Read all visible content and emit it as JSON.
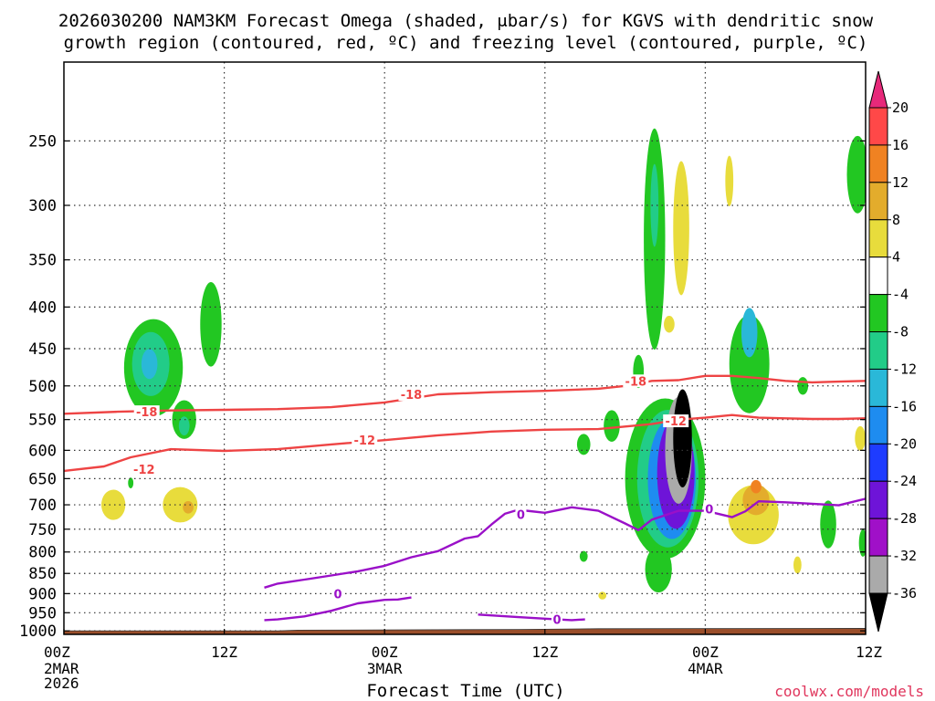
{
  "title_line1": "2026030200 NAM3KM Forecast Omega (shaded, μbar/s) for KGVS with dendritic snow",
  "title_line2": "growth region (contoured, red, ºC) and freezing level (contoured, purple, ºC)",
  "xlabel": "Forecast Time (UTC)",
  "credit": "coolwx.com/models",
  "colors": {
    "ground": "#9a4e2a",
    "dgz": "#ee4444",
    "freezing": "#9a10c8"
  },
  "chart_data": {
    "type": "heatmap",
    "x_ticks": [
      {
        "label": "00Z",
        "sub": [
          "2MAR",
          "2026"
        ],
        "hour": 0
      },
      {
        "label": "12Z",
        "sub": [],
        "hour": 12
      },
      {
        "label": "00Z",
        "sub": [
          "3MAR"
        ],
        "hour": 24
      },
      {
        "label": "12Z",
        "sub": [],
        "hour": 36
      },
      {
        "label": "00Z",
        "sub": [
          "4MAR"
        ],
        "hour": 48
      },
      {
        "label": "12Z",
        "sub": [],
        "hour": 60
      }
    ],
    "xlim": [
      0,
      60
    ],
    "y_ticks": [
      250,
      300,
      350,
      400,
      450,
      500,
      550,
      600,
      650,
      700,
      750,
      800,
      850,
      900,
      950,
      1000
    ],
    "ylim": [
      200,
      1010
    ],
    "colorbar": {
      "labels": [
        "20",
        "16",
        "12",
        "8",
        "4",
        "-4",
        "-8",
        "-12",
        "-16",
        "-20",
        "-24",
        "-28",
        "-32",
        "-36"
      ],
      "colors": [
        "#e7297a",
        "#ff4848",
        "#f08222",
        "#e3ac2c",
        "#e8dc3c",
        "#ffffff",
        "#22c722",
        "#22cc88",
        "#2ab8d8",
        "#1e8cf0",
        "#1e3cff",
        "#6e14d8",
        "#a010c8",
        "#aaaaaa",
        "#000000"
      ]
    },
    "contours": {
      "dgz_minus18": [
        [
          0,
          541
        ],
        [
          4,
          538
        ],
        [
          8,
          536
        ],
        [
          12,
          535
        ],
        [
          16,
          534
        ],
        [
          20,
          531
        ],
        [
          24,
          524
        ],
        [
          28,
          512
        ],
        [
          32,
          509
        ],
        [
          36,
          507
        ],
        [
          40,
          504
        ],
        [
          42,
          500
        ],
        [
          44,
          493
        ],
        [
          46,
          492
        ],
        [
          48,
          486
        ],
        [
          50,
          486
        ],
        [
          52,
          489
        ],
        [
          54,
          493
        ],
        [
          56,
          495
        ],
        [
          58,
          494
        ],
        [
          60,
          493
        ]
      ],
      "dgz_minus12": [
        [
          0,
          636
        ],
        [
          3,
          628
        ],
        [
          5,
          612
        ],
        [
          8,
          598
        ],
        [
          12,
          601
        ],
        [
          16,
          598
        ],
        [
          20,
          590
        ],
        [
          24,
          583
        ],
        [
          28,
          575
        ],
        [
          30,
          572
        ],
        [
          32,
          569
        ],
        [
          36,
          566
        ],
        [
          40,
          565
        ],
        [
          42,
          561
        ],
        [
          44,
          557
        ],
        [
          46,
          550
        ],
        [
          48,
          547
        ],
        [
          50,
          543
        ],
        [
          52,
          547
        ],
        [
          54,
          548
        ],
        [
          56,
          549
        ],
        [
          58,
          549
        ],
        [
          60,
          548
        ]
      ],
      "freezing_main": [
        [
          15,
          885
        ],
        [
          16,
          875
        ],
        [
          18,
          865
        ],
        [
          20,
          855
        ],
        [
          22,
          845
        ],
        [
          24,
          832
        ],
        [
          26,
          812
        ],
        [
          28,
          798
        ],
        [
          30,
          770
        ],
        [
          31,
          765
        ],
        [
          32,
          740
        ],
        [
          33,
          718
        ],
        [
          34,
          710
        ],
        [
          36,
          716
        ],
        [
          38,
          705
        ],
        [
          40,
          712
        ],
        [
          42,
          738
        ],
        [
          43,
          752
        ],
        [
          44,
          730
        ],
        [
          46,
          712
        ],
        [
          48,
          712
        ],
        [
          50,
          725
        ],
        [
          51,
          713
        ],
        [
          52,
          693
        ],
        [
          54,
          695
        ],
        [
          56,
          698
        ],
        [
          58,
          701
        ],
        [
          60,
          688
        ]
      ],
      "freezing_low": [
        [
          15,
          970
        ],
        [
          16,
          968
        ],
        [
          18,
          960
        ],
        [
          20,
          945
        ],
        [
          22,
          925
        ],
        [
          24,
          916
        ],
        [
          25,
          915
        ],
        [
          26,
          910
        ]
      ],
      "freezing_small": [
        [
          31,
          955
        ],
        [
          34,
          962
        ],
        [
          36,
          966
        ],
        [
          38,
          970
        ],
        [
          39,
          968
        ]
      ]
    },
    "contour_labels": [
      {
        "text": "-18",
        "hour": 26,
        "p": 512,
        "color": "dgz"
      },
      {
        "text": "-18",
        "hour": 6.2,
        "p": 538,
        "color": "dgz"
      },
      {
        "text": "-18",
        "hour": 42.8,
        "p": 493,
        "color": "dgz"
      },
      {
        "text": "-12",
        "hour": 22.5,
        "p": 583,
        "color": "dgz"
      },
      {
        "text": "-12",
        "hour": 6,
        "p": 633,
        "color": "dgz"
      },
      {
        "text": "-12",
        "hour": 45.8,
        "p": 552,
        "color": "dgz"
      },
      {
        "text": "0",
        "hour": 34.2,
        "p": 719,
        "color": "freezing"
      },
      {
        "text": "0",
        "hour": 20.5,
        "p": 900,
        "color": "freezing"
      },
      {
        "text": "0",
        "hour": 36.9,
        "p": 968,
        "color": "freezing"
      },
      {
        "text": "0",
        "hour": 48.3,
        "p": 708,
        "color": "freezing"
      }
    ],
    "omega_regions": [
      {
        "level": "-8",
        "hour": 6.7,
        "p": 475,
        "rh": 2.2,
        "ph": 130,
        "rot": 0
      },
      {
        "level": "-8",
        "hour": 11,
        "p": 420,
        "rh": 0.8,
        "ph": 100,
        "rot": 0
      },
      {
        "level": "-12",
        "hour": 6.5,
        "p": 470,
        "rh": 1.4,
        "ph": 85,
        "rot": 0
      },
      {
        "level": "-16",
        "hour": 6.4,
        "p": 470,
        "rh": 0.6,
        "ph": 40,
        "rot": 0
      },
      {
        "level": "-8",
        "hour": 9,
        "p": 550,
        "rh": 0.9,
        "ph": 60,
        "rot": 0
      },
      {
        "level": "-12",
        "hour": 9,
        "p": 560,
        "rh": 0.4,
        "ph": 30,
        "rot": 0
      },
      {
        "level": "4",
        "hour": 3.7,
        "p": 700,
        "rh": 0.9,
        "ph": 60,
        "rot": 0
      },
      {
        "level": "4",
        "hour": 8.7,
        "p": 700,
        "rh": 1.3,
        "ph": 70,
        "rot": 0
      },
      {
        "level": "8",
        "hour": 9.3,
        "p": 705,
        "rh": 0.4,
        "ph": 25,
        "rot": 0
      },
      {
        "level": "-8",
        "hour": 5,
        "p": 658,
        "rh": 0.2,
        "ph": 20,
        "rot": 0
      },
      {
        "level": "-8",
        "hour": 44.2,
        "p": 330,
        "rh": 0.8,
        "ph": 200,
        "rot": 0
      },
      {
        "level": "-12",
        "hour": 44.2,
        "p": 300,
        "rh": 0.3,
        "ph": 70,
        "rot": 0
      },
      {
        "level": "-8",
        "hour": 45,
        "p": 650,
        "rh": 3.0,
        "ph": 290,
        "rot": 0
      },
      {
        "level": "-12",
        "hour": 45.2,
        "p": 650,
        "rh": 2.3,
        "ph": 250,
        "rot": 0
      },
      {
        "level": "-20",
        "hour": 45.5,
        "p": 650,
        "rh": 1.8,
        "ph": 220,
        "rot": 0
      },
      {
        "level": "-28",
        "hour": 45.8,
        "p": 640,
        "rh": 1.4,
        "ph": 200,
        "rot": 0
      },
      {
        "level": "-32",
        "hour": 46,
        "p": 600,
        "rh": 1.0,
        "ph": 180,
        "rot": 0
      },
      {
        "level": "-36",
        "hour": 46.3,
        "p": 580,
        "rh": 0.7,
        "ph": 160,
        "rot": 0
      },
      {
        "level": "-8",
        "hour": 44.5,
        "p": 840,
        "rh": 1.0,
        "ph": 110,
        "rot": 0
      },
      {
        "level": "-8",
        "hour": 41,
        "p": 560,
        "rh": 0.6,
        "ph": 50,
        "rot": 0
      },
      {
        "level": "-8",
        "hour": 43,
        "p": 480,
        "rh": 0.4,
        "ph": 45,
        "rot": 0
      },
      {
        "level": "4",
        "hour": 45.3,
        "p": 420,
        "rh": 0.4,
        "ph": 20,
        "rot": 0
      },
      {
        "level": "4",
        "hour": 46.2,
        "p": 320,
        "rh": 0.6,
        "ph": 120,
        "rot": 0
      },
      {
        "level": "-8",
        "hour": 51.3,
        "p": 470,
        "rh": 1.5,
        "ph": 130,
        "rot": 0
      },
      {
        "level": "-16",
        "hour": 51.3,
        "p": 430,
        "rh": 0.6,
        "ph": 60,
        "rot": 0
      },
      {
        "level": "4",
        "hour": 51.6,
        "p": 720,
        "rh": 1.9,
        "ph": 120,
        "rot": 0
      },
      {
        "level": "8",
        "hour": 51.8,
        "p": 690,
        "rh": 1.0,
        "ph": 60,
        "rot": 0
      },
      {
        "level": "12",
        "hour": 51.8,
        "p": 665,
        "rh": 0.4,
        "ph": 25,
        "rot": 0
      },
      {
        "level": "-8",
        "hour": 59.4,
        "p": 275,
        "rh": 0.8,
        "ph": 60,
        "rot": 0
      },
      {
        "level": "-8",
        "hour": 57.2,
        "p": 740,
        "rh": 0.6,
        "ph": 100,
        "rot": 0
      },
      {
        "level": "4",
        "hour": 49.8,
        "p": 280,
        "rh": 0.3,
        "ph": 40,
        "rot": 0
      },
      {
        "level": "4",
        "hour": 59.6,
        "p": 580,
        "rh": 0.4,
        "ph": 40,
        "rot": 0
      },
      {
        "level": "-8",
        "hour": 55.3,
        "p": 500,
        "rh": 0.4,
        "ph": 25,
        "rot": 0
      },
      {
        "level": "-8",
        "hour": 59.8,
        "p": 780,
        "rh": 0.3,
        "ph": 60,
        "rot": 0
      },
      {
        "level": "-8",
        "hour": 38.9,
        "p": 590,
        "rh": 0.5,
        "ph": 35,
        "rot": 0
      },
      {
        "level": "-8",
        "hour": 38.9,
        "p": 810,
        "rh": 0.3,
        "ph": 25,
        "rot": 0
      },
      {
        "level": "4",
        "hour": 40.3,
        "p": 905,
        "rh": 0.3,
        "ph": 20,
        "rot": 0
      },
      {
        "level": "4",
        "hour": 54.9,
        "p": 830,
        "rh": 0.3,
        "ph": 40,
        "rot": 0
      }
    ],
    "ground_pressure": [
      [
        0,
        1000
      ],
      [
        16,
        1000
      ],
      [
        17.5,
        998
      ],
      [
        34,
        996
      ],
      [
        40,
        994
      ],
      [
        60,
        993
      ]
    ]
  }
}
